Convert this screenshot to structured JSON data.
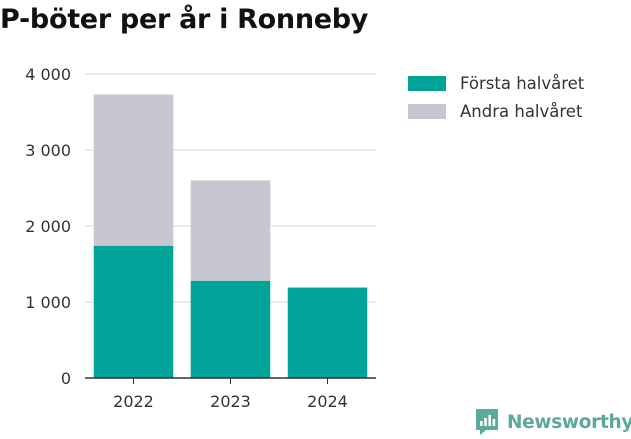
{
  "title": "P-böter per år i Ronneby",
  "brand": {
    "name": "Newsworthy",
    "icon": "newsworthy-logo-icon",
    "color": "#5aa99a"
  },
  "colors": {
    "first_half": "#00a398",
    "second_half": "#c8c7d1",
    "grid": "#d9d9d9",
    "axis": "#333333"
  },
  "chart_data": {
    "type": "bar",
    "stacked": true,
    "title": "P-böter per år i Ronneby",
    "categories": [
      "2022",
      "2023",
      "2024"
    ],
    "series": [
      {
        "name": "Första halvåret",
        "values": [
          1740,
          1280,
          1190
        ]
      },
      {
        "name": "Andra halvåret",
        "values": [
          1990,
          1320,
          0
        ]
      }
    ],
    "ylim": [
      0,
      4000
    ],
    "yticks": [
      0,
      1000,
      2000,
      3000,
      4000
    ],
    "ytick_labels": [
      "0",
      "1 000",
      "2 000",
      "3 000",
      "4 000"
    ],
    "xlabel": "",
    "ylabel": "",
    "grid": "horizontal",
    "legend_position": "top-right"
  }
}
